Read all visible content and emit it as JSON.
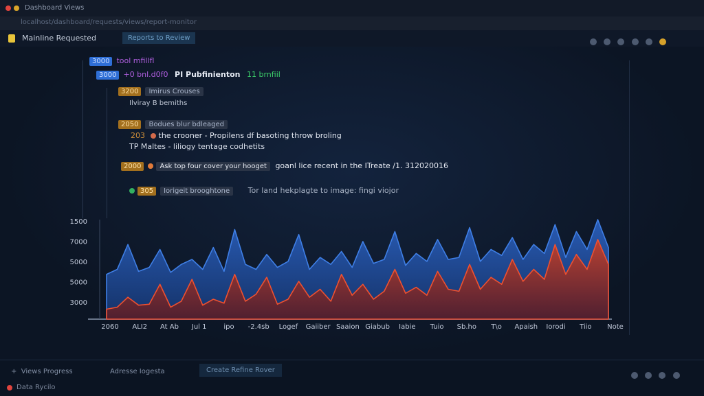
{
  "tab": {
    "title": "Dashboard Views"
  },
  "toolbar": {
    "address": "localhost/dashboard/requests/views/report-monitor"
  },
  "appbar": {
    "title": "Mainline Requested",
    "tab": "Reports to Review"
  },
  "tree": {
    "row1": {
      "badge": "3000",
      "text": "tool mfillfl"
    },
    "row2": {
      "badge": "3000",
      "text": "+0 bnl.d0f0",
      "title": "PI Pubfinienton",
      "tag": "11 brnfiil"
    },
    "row3": {
      "badge": "3200",
      "pill": "Imirus Crouses",
      "sub": "Ilviray B bemiths"
    },
    "row4": {
      "badge": "2050",
      "pill": "Bodues blur bdleaged",
      "id": "203",
      "line1": "the crooner - Propilens df basoting throw broling",
      "line2": "TP Maltes - liliogy tentage codhetits"
    },
    "row5": {
      "badge": "2000",
      "pill": "Ask top four cover your hooget",
      "text": "goanl lice recent in the ITreate /1. 312020016"
    },
    "row6": {
      "badge": "305",
      "pill": "Iorigeit brooghtone",
      "text": "Tor land hekplagte to image: fingi viojor"
    }
  },
  "chart": {
    "type": "area",
    "ylim": [
      0,
      100
    ],
    "y_labels": [
      "1500",
      "7000",
      "5000",
      "5000",
      "3000"
    ],
    "x_labels": [
      "2060",
      "ALI2",
      "At Ab",
      "Jul 1",
      "ipo",
      "-2.4sb",
      "Logef",
      "Gaiiber",
      "Saaion",
      "Giabub",
      "Iabie",
      "Tuio",
      "Sb.ho",
      "T\\o",
      "Apaish",
      "Iorodi",
      "Tiio",
      "Note"
    ],
    "series": [
      {
        "color": "#3f7fe6",
        "values": [
          45,
          50,
          75,
          48,
          52,
          70,
          47,
          55,
          60,
          50,
          72,
          48,
          90,
          55,
          50,
          65,
          52,
          58,
          85,
          50,
          62,
          55,
          68,
          52,
          78,
          56,
          60,
          88,
          54,
          66,
          58,
          80,
          60,
          62,
          92,
          58,
          70,
          64,
          82,
          60,
          75,
          66,
          95,
          62,
          88,
          70,
          100,
          72
        ]
      },
      {
        "color": "#f0502f",
        "values": [
          10,
          12,
          22,
          14,
          15,
          35,
          12,
          18,
          40,
          14,
          20,
          16,
          45,
          18,
          25,
          42,
          15,
          20,
          38,
          22,
          30,
          18,
          45,
          24,
          35,
          20,
          28,
          50,
          26,
          32,
          24,
          48,
          30,
          28,
          55,
          30,
          42,
          35,
          60,
          38,
          50,
          40,
          75,
          45,
          65,
          50,
          80,
          55
        ]
      }
    ]
  },
  "footer": {
    "item1": "Views Progress",
    "item2": "Adresse Iogesta",
    "button": "Create Refine Rover",
    "status": "Data Rycilo"
  }
}
